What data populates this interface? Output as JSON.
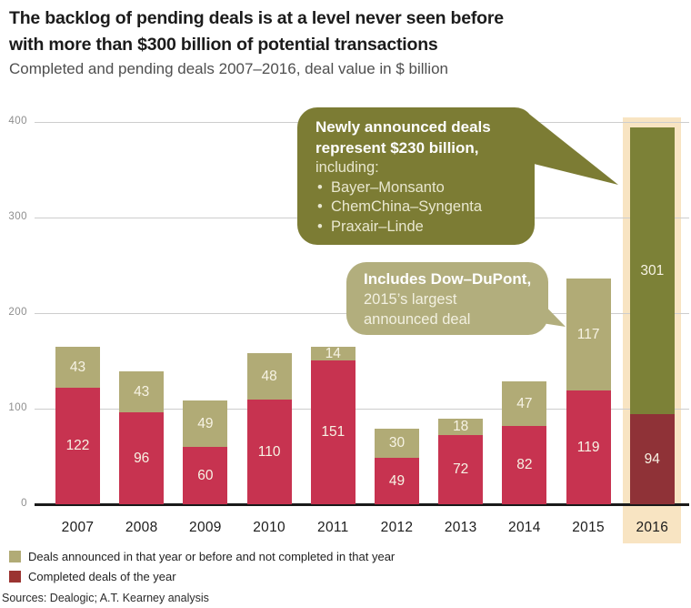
{
  "header": {
    "title_line1": "The backlog of pending deals is at a level never seen before",
    "title_line2": "with more than $300 billion of potential transactions",
    "subtitle": "Completed and pending deals 2007–2016, deal value in $ billion"
  },
  "chart_data": {
    "type": "bar",
    "stacked": true,
    "title": "Completed and pending deals 2007–2016, deal value in $ billion",
    "categories": [
      "2007",
      "2008",
      "2009",
      "2010",
      "2011",
      "2012",
      "2013",
      "2014",
      "2015",
      "2016"
    ],
    "series": [
      {
        "name": "Deals announced in that year or before and not completed in that year",
        "color": "#b1ab76",
        "color_highlight": "#7c8137",
        "values": [
          43,
          43,
          49,
          48,
          14,
          30,
          18,
          47,
          117,
          301
        ]
      },
      {
        "name": "Completed deals of the year",
        "color": "#c73350",
        "color_highlight": "#8f3237",
        "values": [
          122,
          96,
          60,
          110,
          151,
          49,
          72,
          82,
          119,
          94
        ]
      }
    ],
    "ylim": [
      0,
      400
    ],
    "yticks": [
      0,
      100,
      200,
      300,
      400
    ],
    "grid": true,
    "legend_position": "bottom-left",
    "highlighted_category": "2016",
    "highlight_color": "#f8e4c2"
  },
  "annotations": {
    "callout1": {
      "bold_line1": "Newly announced deals",
      "bold_line2": "represent $230 billion,",
      "regular_line": "including:",
      "bullets": [
        "Bayer–Monsanto",
        "ChemChina–Syngenta",
        "Praxair–Linde"
      ],
      "bg_color": "#7c7c34"
    },
    "callout2": {
      "bold_line": "Includes Dow–DuPont,",
      "regular_line1": "2015’s largest",
      "regular_line2": "announced deal",
      "bg_color": "#b2ae7d"
    }
  },
  "legend": {
    "items": [
      {
        "label": "Deals announced in that year or before and not completed in that year",
        "color": "#b1ab76"
      },
      {
        "label": "Completed deals of the year",
        "color": "#9b3431"
      }
    ]
  },
  "footer": {
    "sources": "Sources: Dealogic; A.T. Kearney analysis"
  }
}
